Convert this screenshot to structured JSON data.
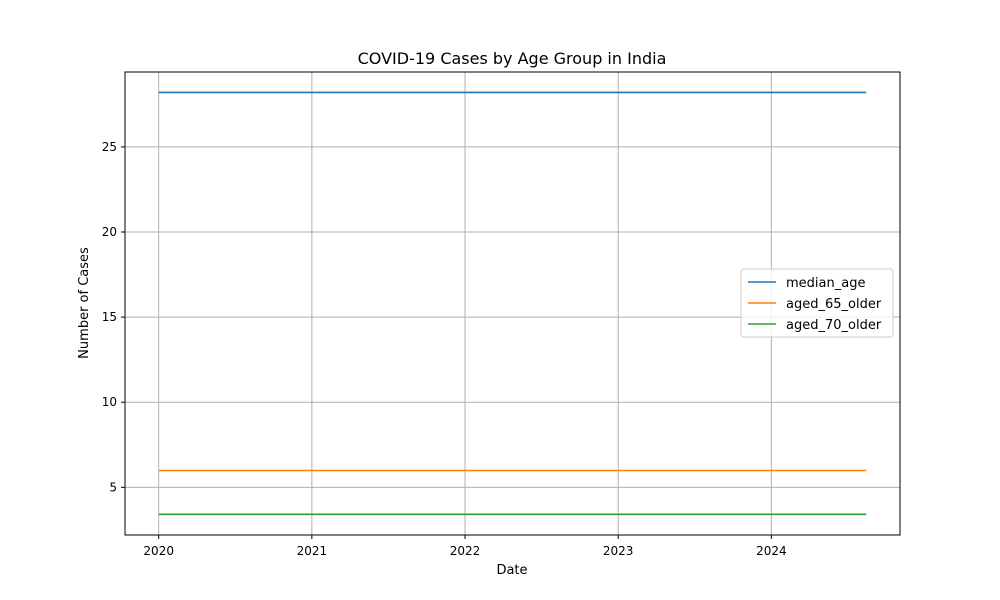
{
  "chart_data": {
    "type": "line",
    "title": "COVID-19 Cases by Age Group in India",
    "xlabel": "Date",
    "ylabel": "Number of Cases",
    "x_range": [
      2020.0,
      2024.62
    ],
    "xlim": [
      2019.78,
      2024.84
    ],
    "ylim": [
      2.2,
      29.4
    ],
    "x_ticks": [
      2020,
      2021,
      2022,
      2023,
      2024
    ],
    "y_ticks": [
      5,
      10,
      15,
      20,
      25
    ],
    "grid": true,
    "legend_position": "center-right",
    "series": [
      {
        "name": "median_age",
        "color": "#1f77b4",
        "y": 28.2
      },
      {
        "name": "aged_65_older",
        "color": "#ff7f0e",
        "y": 5.989
      },
      {
        "name": "aged_70_older",
        "color": "#2ca02c",
        "y": 3.414
      }
    ]
  }
}
